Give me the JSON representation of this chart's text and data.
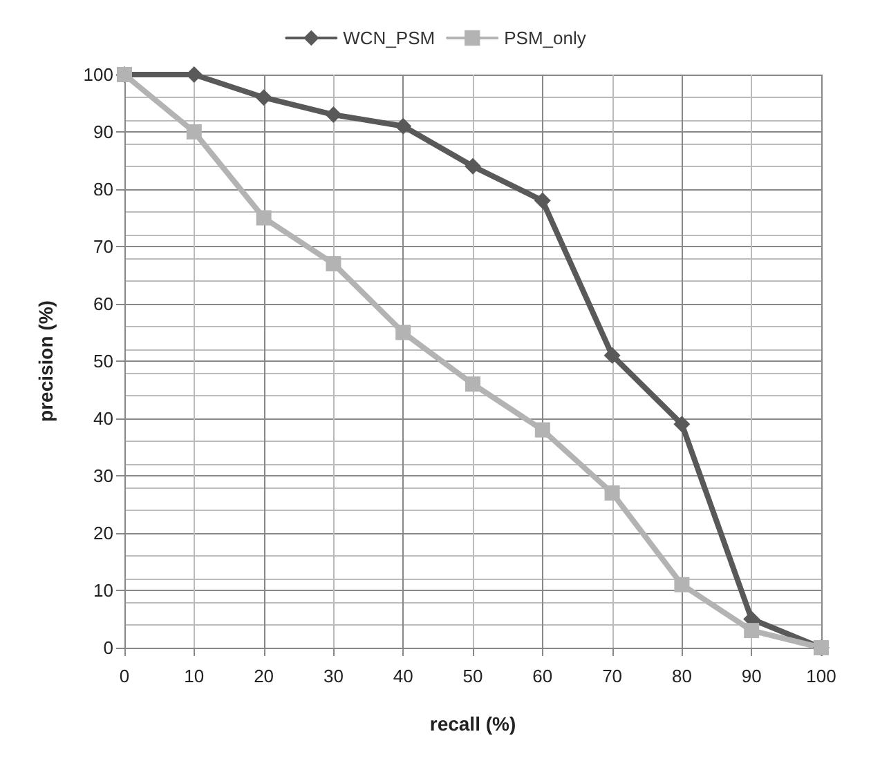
{
  "chart_data": {
    "type": "line",
    "xlabel": "recall (%)",
    "ylabel": "precision (%)",
    "x": [
      0,
      10,
      20,
      30,
      40,
      50,
      60,
      70,
      80,
      90,
      100
    ],
    "series": [
      {
        "name": "WCN_PSM",
        "color": "#595959",
        "marker": "diamond",
        "values": [
          100,
          100,
          96,
          93,
          91,
          84,
          78,
          51,
          39,
          5,
          0
        ]
      },
      {
        "name": "PSM_only",
        "color": "#b3b3b3",
        "marker": "square",
        "values": [
          100,
          90,
          75,
          67,
          55,
          46,
          38,
          27,
          11,
          3,
          0
        ]
      }
    ],
    "xlim": [
      0,
      100
    ],
    "xticks": [
      0,
      10,
      20,
      30,
      40,
      50,
      60,
      70,
      80,
      90,
      100
    ],
    "ylim": [
      0,
      100
    ],
    "yticks": [
      0,
      10,
      20,
      30,
      40,
      50,
      60,
      70,
      80,
      90,
      100
    ],
    "grid": true,
    "legend": "top",
    "line_style": "solid"
  }
}
